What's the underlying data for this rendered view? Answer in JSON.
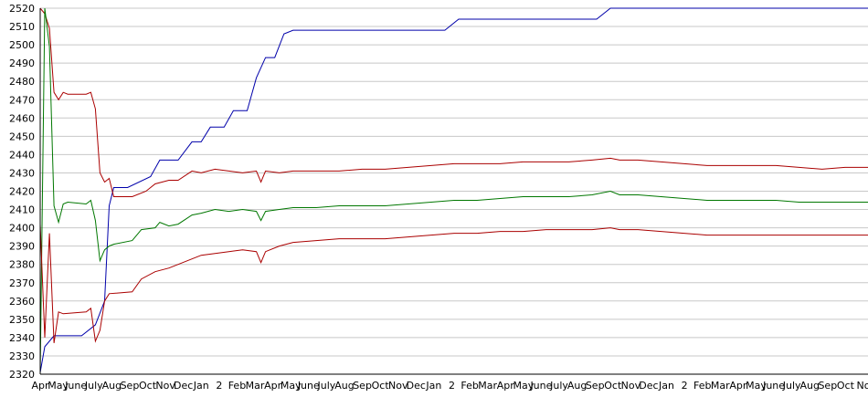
{
  "chart_data": {
    "type": "line",
    "ylim": [
      2320,
      2520
    ],
    "ytick_step": 10,
    "grid": true,
    "legend": "none",
    "x_tick_labels": [
      "Apr",
      "May",
      "June",
      "July",
      "Aug",
      "Sep",
      "Oct",
      "Nov",
      "Dec",
      "Jan",
      "2",
      "Feb",
      "Mar",
      "Apr",
      "May",
      "June",
      "July",
      "Aug",
      "Sep",
      "Oct",
      "Nov",
      "Dec",
      "Jan",
      "2",
      "Feb",
      "Mar",
      "Apr",
      "May",
      "June",
      "July",
      "Aug",
      "Sep",
      "Oct",
      "Nov",
      "Dec",
      "Jan",
      "2",
      "Feb",
      "Mar",
      "Apr",
      "May",
      "June",
      "July",
      "Aug",
      "Sep",
      "Oct",
      "No"
    ],
    "series": [
      {
        "color": "#0000aa",
        "points": [
          [
            0,
            2321
          ],
          [
            1,
            2335
          ],
          [
            3,
            2341
          ],
          [
            9,
            2341
          ],
          [
            12,
            2347
          ],
          [
            14,
            2360
          ],
          [
            15,
            2412
          ],
          [
            16,
            2422
          ],
          [
            19,
            2422
          ],
          [
            24,
            2428
          ],
          [
            26,
            2437
          ],
          [
            30,
            2437
          ],
          [
            33,
            2447
          ],
          [
            35,
            2447
          ],
          [
            37,
            2455
          ],
          [
            40,
            2455
          ],
          [
            42,
            2464
          ],
          [
            45,
            2464
          ],
          [
            47,
            2482
          ],
          [
            49,
            2493
          ],
          [
            51,
            2493
          ],
          [
            53,
            2506
          ],
          [
            55,
            2508
          ],
          [
            88,
            2508
          ],
          [
            91,
            2514
          ],
          [
            102,
            2514
          ],
          [
            121,
            2514
          ],
          [
            124,
            2520
          ],
          [
            180,
            2520
          ]
        ]
      },
      {
        "color": "#aa0000",
        "points": [
          [
            0,
            2520
          ],
          [
            1,
            2517
          ],
          [
            2,
            2509
          ],
          [
            3,
            2474
          ],
          [
            4,
            2470
          ],
          [
            5,
            2474
          ],
          [
            6,
            2473
          ],
          [
            10,
            2473
          ],
          [
            11,
            2474
          ],
          [
            12,
            2465
          ],
          [
            13,
            2430
          ],
          [
            14,
            2425
          ],
          [
            15,
            2427
          ],
          [
            16,
            2417
          ],
          [
            20,
            2417
          ],
          [
            23,
            2420
          ],
          [
            25,
            2424
          ],
          [
            28,
            2426
          ],
          [
            30,
            2426
          ],
          [
            33,
            2431
          ],
          [
            35,
            2430
          ],
          [
            38,
            2432
          ],
          [
            41,
            2431
          ],
          [
            44,
            2430
          ],
          [
            47,
            2431
          ],
          [
            48,
            2425
          ],
          [
            49,
            2431
          ],
          [
            52,
            2430
          ],
          [
            55,
            2431
          ],
          [
            60,
            2431
          ],
          [
            65,
            2431
          ],
          [
            70,
            2432
          ],
          [
            75,
            2432
          ],
          [
            80,
            2433
          ],
          [
            85,
            2434
          ],
          [
            90,
            2435
          ],
          [
            95,
            2435
          ],
          [
            100,
            2435
          ],
          [
            105,
            2436
          ],
          [
            110,
            2436
          ],
          [
            115,
            2436
          ],
          [
            120,
            2437
          ],
          [
            124,
            2438
          ],
          [
            126,
            2437
          ],
          [
            130,
            2437
          ],
          [
            135,
            2436
          ],
          [
            140,
            2435
          ],
          [
            145,
            2434
          ],
          [
            150,
            2434
          ],
          [
            155,
            2434
          ],
          [
            160,
            2434
          ],
          [
            165,
            2433
          ],
          [
            170,
            2432
          ],
          [
            175,
            2433
          ],
          [
            180,
            2433
          ]
        ]
      },
      {
        "color": "#007700",
        "points": [
          [
            0,
            2320
          ],
          [
            1,
            2520
          ],
          [
            2,
            2499
          ],
          [
            3,
            2412
          ],
          [
            4,
            2403
          ],
          [
            5,
            2413
          ],
          [
            6,
            2414
          ],
          [
            10,
            2413
          ],
          [
            11,
            2415
          ],
          [
            12,
            2404
          ],
          [
            13,
            2382
          ],
          [
            14,
            2388
          ],
          [
            15,
            2390
          ],
          [
            16,
            2391
          ],
          [
            20,
            2393
          ],
          [
            22,
            2399
          ],
          [
            25,
            2400
          ],
          [
            26,
            2403
          ],
          [
            28,
            2401
          ],
          [
            30,
            2402
          ],
          [
            33,
            2407
          ],
          [
            35,
            2408
          ],
          [
            38,
            2410
          ],
          [
            41,
            2409
          ],
          [
            44,
            2410
          ],
          [
            47,
            2409
          ],
          [
            48,
            2404
          ],
          [
            49,
            2409
          ],
          [
            52,
            2410
          ],
          [
            55,
            2411
          ],
          [
            60,
            2411
          ],
          [
            65,
            2412
          ],
          [
            70,
            2412
          ],
          [
            75,
            2412
          ],
          [
            80,
            2413
          ],
          [
            85,
            2414
          ],
          [
            90,
            2415
          ],
          [
            95,
            2415
          ],
          [
            100,
            2416
          ],
          [
            105,
            2417
          ],
          [
            110,
            2417
          ],
          [
            115,
            2417
          ],
          [
            120,
            2418
          ],
          [
            124,
            2420
          ],
          [
            126,
            2418
          ],
          [
            130,
            2418
          ],
          [
            135,
            2417
          ],
          [
            140,
            2416
          ],
          [
            145,
            2415
          ],
          [
            150,
            2415
          ],
          [
            155,
            2415
          ],
          [
            160,
            2415
          ],
          [
            165,
            2414
          ],
          [
            170,
            2414
          ],
          [
            175,
            2414
          ],
          [
            180,
            2414
          ]
        ]
      },
      {
        "color": "#aa0000",
        "points": [
          [
            0,
            2402
          ],
          [
            1,
            2340
          ],
          [
            2,
            2397
          ],
          [
            3,
            2337
          ],
          [
            4,
            2354
          ],
          [
            5,
            2353
          ],
          [
            10,
            2354
          ],
          [
            11,
            2356
          ],
          [
            12,
            2338
          ],
          [
            13,
            2344
          ],
          [
            14,
            2360
          ],
          [
            15,
            2364
          ],
          [
            20,
            2365
          ],
          [
            22,
            2372
          ],
          [
            25,
            2376
          ],
          [
            28,
            2378
          ],
          [
            30,
            2380
          ],
          [
            33,
            2383
          ],
          [
            35,
            2385
          ],
          [
            38,
            2386
          ],
          [
            41,
            2387
          ],
          [
            44,
            2388
          ],
          [
            47,
            2387
          ],
          [
            48,
            2381
          ],
          [
            49,
            2387
          ],
          [
            52,
            2390
          ],
          [
            55,
            2392
          ],
          [
            60,
            2393
          ],
          [
            65,
            2394
          ],
          [
            70,
            2394
          ],
          [
            75,
            2394
          ],
          [
            80,
            2395
          ],
          [
            85,
            2396
          ],
          [
            90,
            2397
          ],
          [
            95,
            2397
          ],
          [
            100,
            2398
          ],
          [
            105,
            2398
          ],
          [
            110,
            2399
          ],
          [
            115,
            2399
          ],
          [
            120,
            2399
          ],
          [
            124,
            2400
          ],
          [
            126,
            2399
          ],
          [
            130,
            2399
          ],
          [
            135,
            2398
          ],
          [
            140,
            2397
          ],
          [
            145,
            2396
          ],
          [
            150,
            2396
          ],
          [
            155,
            2396
          ],
          [
            160,
            2396
          ],
          [
            165,
            2396
          ],
          [
            170,
            2396
          ],
          [
            175,
            2396
          ],
          [
            180,
            2396
          ]
        ]
      }
    ]
  }
}
